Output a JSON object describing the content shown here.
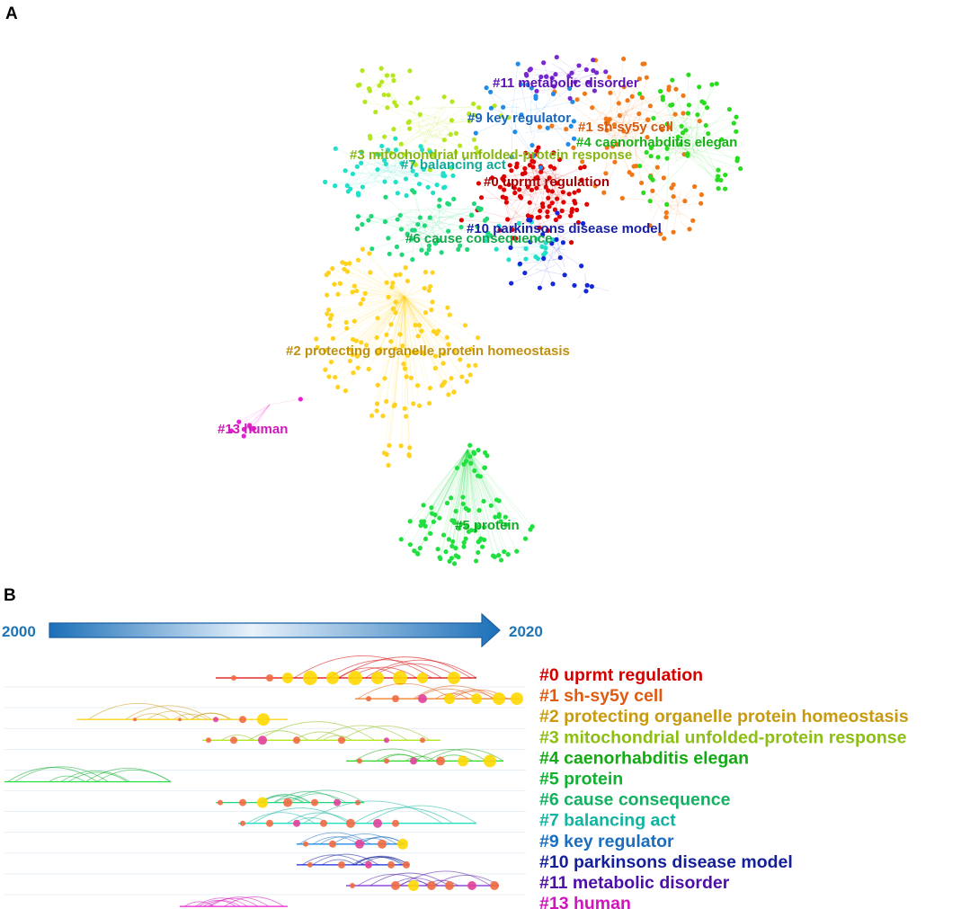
{
  "panels": {
    "a": "A",
    "b": "B"
  },
  "timeline": {
    "start_year": "2000",
    "end_year": "2020"
  },
  "clusters": [
    {
      "id": "c0",
      "label": "#0 uprmt regulation",
      "color": "#e00000",
      "tl_color": "#d40000",
      "text_color": "#a80000"
    },
    {
      "id": "c1",
      "label": "#1 sh-sy5y cell",
      "color": "#f07818",
      "tl_color": "#e05a10",
      "text_color": "#d25a10"
    },
    {
      "id": "c2",
      "label": "#2 protecting organelle protein homeostasis",
      "color": "#ffd21e",
      "tl_color": "#c89a10",
      "text_color": "#c09010"
    },
    {
      "id": "c3",
      "label": "#3 mitochondrial unfolded-protein response",
      "color": "#b6e61e",
      "tl_color": "#8cbe14",
      "text_color": "#86b614"
    },
    {
      "id": "c4",
      "label": "#4 caenorhabditis elegan",
      "color": "#28dc1e",
      "tl_color": "#14aa14",
      "text_color": "#18b018"
    },
    {
      "id": "c5",
      "label": "#5 protein",
      "color": "#20e040",
      "tl_color": "#10b030",
      "text_color": "#16a82a"
    },
    {
      "id": "c6",
      "label": "#6 cause consequence",
      "color": "#20d87a",
      "tl_color": "#12b060",
      "text_color": "#14a84a"
    },
    {
      "id": "c7",
      "label": "#7 balancing act",
      "color": "#20e0c8",
      "tl_color": "#10b4a0",
      "text_color": "#14a896"
    },
    {
      "id": "c9",
      "label": "#9 key regulator",
      "color": "#1e8ce8",
      "tl_color": "#1a6ec0",
      "text_color": "#1a66b8"
    },
    {
      "id": "c10",
      "label": "#10 parkinsons disease model",
      "color": "#1428d8",
      "tl_color": "#14209a",
      "text_color": "#181ea4"
    },
    {
      "id": "c11",
      "label": "#11 metabolic disorder",
      "color": "#7828d0",
      "tl_color": "#4c10a8",
      "text_color": "#5a10b4"
    },
    {
      "id": "c13",
      "label": "#13 human",
      "color": "#e81ed2",
      "tl_color": "#d214be",
      "text_color": "#cc1ab8"
    }
  ]
}
